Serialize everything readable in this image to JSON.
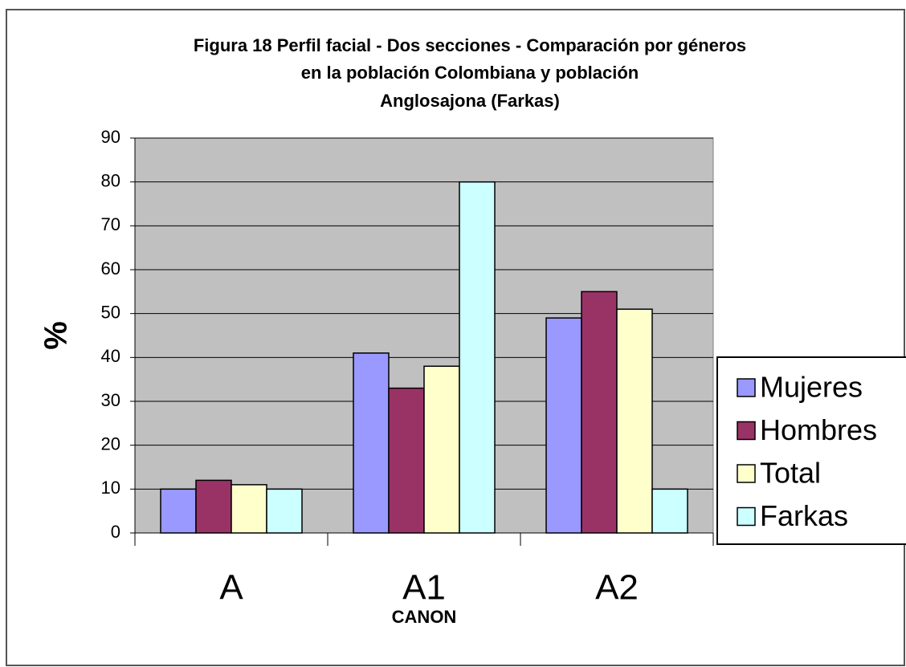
{
  "chart_data": {
    "type": "bar",
    "title": [
      "Figura 18 Perfil facial - Dos secciones - Comparación por géneros",
      "en la población Colombiana y población",
      "Anglosajona (Farkas)"
    ],
    "xlabel": "CANON",
    "ylabel": "%",
    "categories": [
      "A",
      "A1",
      "A2"
    ],
    "series": [
      {
        "name": "Mujeres",
        "color": "#9999ff",
        "values": [
          10,
          41,
          49
        ]
      },
      {
        "name": "Hombres",
        "color": "#993366",
        "values": [
          12,
          33,
          55
        ]
      },
      {
        "name": "Total",
        "color": "#ffffcc",
        "values": [
          11,
          38,
          51
        ]
      },
      {
        "name": "Farkas",
        "color": "#ccffff",
        "values": [
          10,
          80,
          10
        ]
      }
    ],
    "ylim": [
      0,
      90
    ],
    "yticks": [
      0,
      10,
      20,
      30,
      40,
      50,
      60,
      70,
      80,
      90
    ],
    "grid": true,
    "legend": "right",
    "plot_background": "#c0c0c0"
  }
}
